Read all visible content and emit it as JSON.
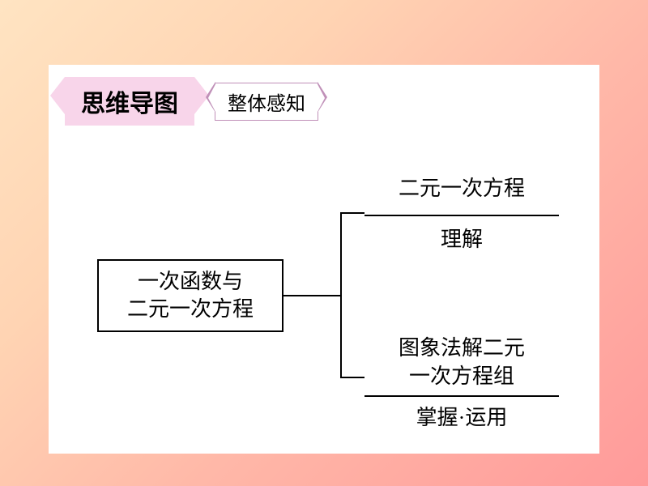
{
  "header": {
    "title": "思维导图",
    "subtitle": "整体感知"
  },
  "diagram": {
    "type": "tree",
    "root": {
      "line1": "一次函数与",
      "line2": "二元一次方程"
    },
    "branches": [
      {
        "label": "二元一次方程",
        "sublabel": "理解"
      },
      {
        "label_line1": "图象法解二元",
        "label_line2": "一次方程组",
        "sublabel": "掌握·运用"
      }
    ]
  },
  "colors": {
    "gradient_start": "#ffe4c2",
    "gradient_end": "#ff9a9a",
    "panel_bg": "#ffffff",
    "title_badge_bg": "#f8d5ea",
    "subtitle_border": "#c090b8",
    "line_color": "#000000"
  },
  "fonts": {
    "title_size": 30,
    "subtitle_size": 24,
    "diagram_size": 26
  }
}
